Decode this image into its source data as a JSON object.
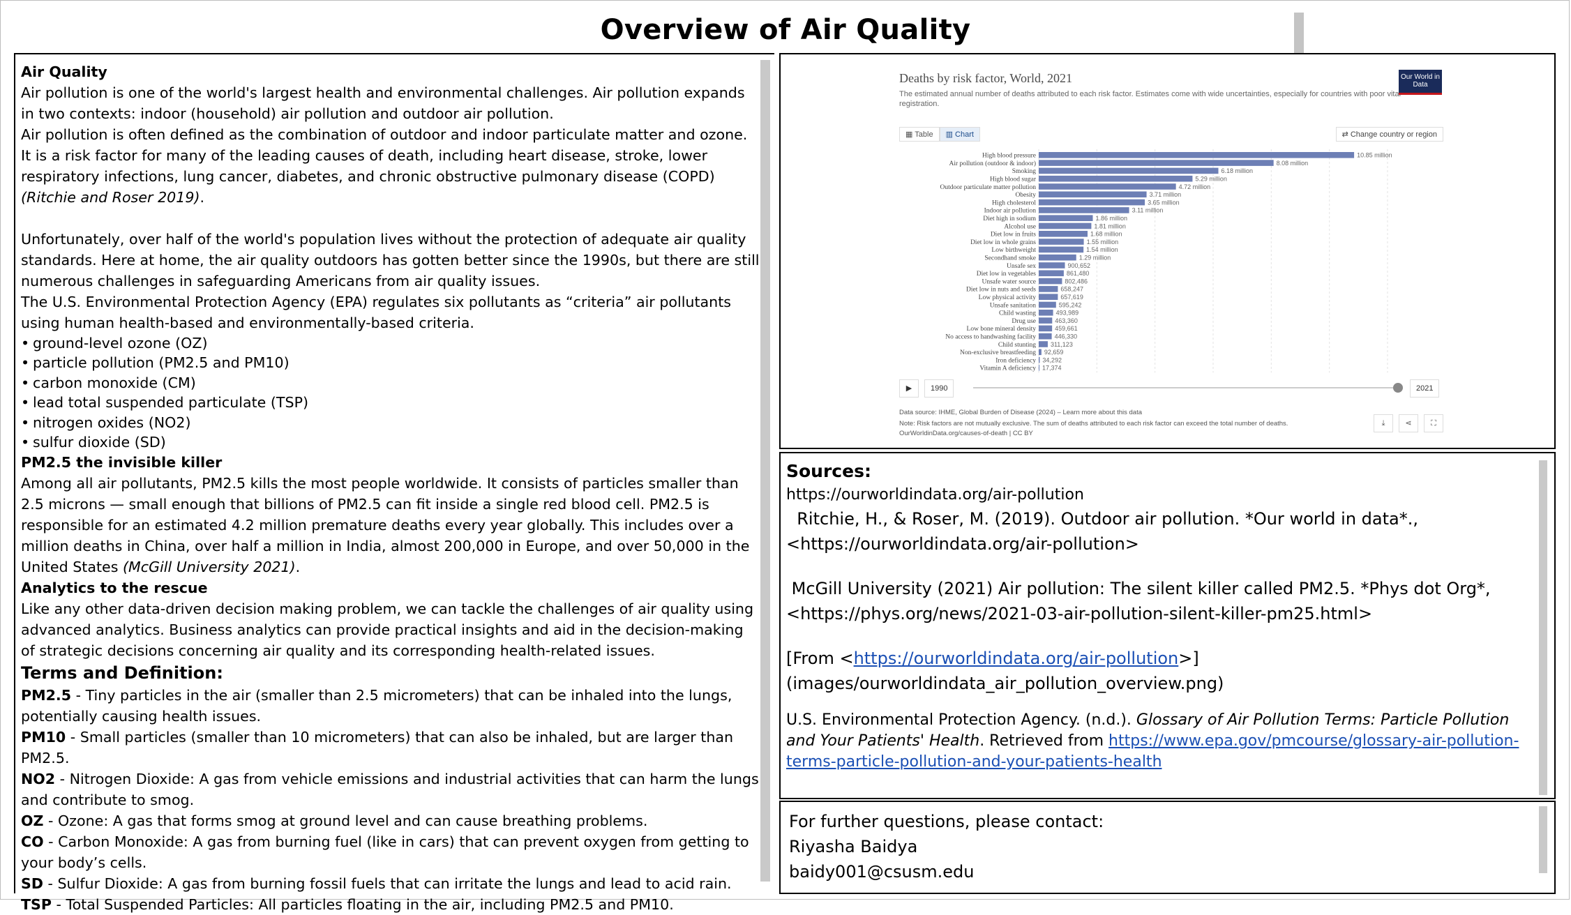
{
  "page": {
    "title": "Overview of Air Quality"
  },
  "left": {
    "heading1": "Air Quality",
    "p1": "Air pollution is one of the world's largest health and environmental challenges. Air pollution expands in two contexts: indoor (household) air pollution and outdoor air pollution.",
    "p2_text": "Air pollution is often defined as the combination of outdoor and indoor particulate matter and ozone. It is a risk factor for many of the leading causes of death, including heart disease, stroke, lower respiratory infections, lung cancer, diabetes, and chronic obstructive pulmonary disease (COPD) ",
    "p2_cite": "(Ritchie and Roser 2019)",
    "p2_end": ".",
    "p3": "Unfortunately, over half of the world's population lives without the protection of adequate air quality standards. Here at home, the air quality outdoors has gotten better since the 1990s, but there are still numerous challenges in safeguarding Americans from air quality issues.",
    "p4": "The U.S. Environmental Protection Agency (EPA) regulates six pollutants as “criteria” air pollutants using human health-based and environmentally-based criteria.",
    "bullet_char": "•",
    "pollutants": [
      "ground-level ozone (OZ)",
      "particle pollution (PM2.5 and PM10)",
      "carbon monoxide (CM)",
      "lead total suspended particulate (TSP)",
      "nitrogen oxides (NO2)",
      "sulfur dioxide (SD)"
    ],
    "heading2": "PM2.5 the invisible killer",
    "p5_text": "Among all air pollutants, PM2.5 kills the most people worldwide. It consists of particles smaller than 2.5 microns — small enough that billions of PM2.5 can fit inside a single red blood cell. PM2.5 is responsible for an estimated 4.2 million premature deaths every year globally. This includes over a million deaths in China, over half a million in India, almost 200,000 in Europe, and over 50,000 in the United States ",
    "p5_cite": "(McGill University 2021)",
    "p5_end": ".",
    "heading3": "Analytics to the rescue",
    "p6": "Like any other data-driven decision making problem, we can tackle the challenges of air quality using advanced analytics. Business analytics can provide practical insights and aid in the decision-making of strategic decisions concerning air quality and its corresponding health-related issues.",
    "terms_heading": "Terms and Definition:",
    "terms": [
      {
        "term": "PM2.5",
        "def": " - Tiny particles in the air (smaller than 2.5 micrometers) that can be inhaled into the lungs, potentially causing health issues."
      },
      {
        "term": "PM10",
        "def": " - Small particles (smaller than 10 micrometers) that can also be inhaled, but are larger than PM2.5."
      },
      {
        "term": "NO2",
        "def": " - Nitrogen Dioxide: A gas from vehicle emissions and industrial activities that can harm the lungs and contribute to smog."
      },
      {
        "term": "OZ",
        "def": " - Ozone: A gas that forms smog at ground level and can cause breathing problems."
      },
      {
        "term": "CO",
        "def": " - Carbon Monoxide: A gas from burning fuel (like in cars) that can prevent oxygen from getting to your body’s cells."
      },
      {
        "term": "SD",
        "def": " - Sulfur Dioxide: A gas from burning fossil fuels that can irritate the lungs and lead to acid rain."
      },
      {
        "term": "TSP",
        "def": " - Total Suspended Particles: All particles floating in the air, including PM2.5 and PM10."
      }
    ]
  },
  "owid": {
    "title": "Deaths by risk factor, World, 2021",
    "subtitle": "The estimated annual number of deaths attributed to each risk factor. Estimates come with wide uncertainties, especially for countries with poor vital registration.",
    "logo": "Our World in Data",
    "tab_table": "Table",
    "tab_chart": "Chart",
    "change_country": "Change country or region",
    "year_start": "1990",
    "year_end": "2021",
    "data_source": "Data source: IHME, Global Burden of Disease (2024) – Learn more about this data",
    "note": "Note: Risk factors are not mutually exclusive. The sum of deaths attributed to each risk factor can exceed the total number of deaths.",
    "url": "OurWorldinData.org/causes-of-death | CC BY",
    "bar_color": "#6d7fb5"
  },
  "chart_data": {
    "type": "bar",
    "orientation": "horizontal",
    "title": "Deaths by risk factor, World, 2021",
    "categories": [
      "High blood pressure",
      "Air pollution (outdoor & indoor)",
      "Smoking",
      "High blood sugar",
      "Outdoor particulate matter pollution",
      "Obesity",
      "High cholesterol",
      "Indoor air pollution",
      "Diet high in sodium",
      "Alcohol use",
      "Diet low in fruits",
      "Diet low in whole grains",
      "Low birthweight",
      "Secondhand smoke",
      "Unsafe sex",
      "Diet low in vegetables",
      "Unsafe water source",
      "Diet low in nuts and seeds",
      "Low physical activity",
      "Unsafe sanitation",
      "Child wasting",
      "Drug use",
      "Low bone mineral density",
      "No access to handwashing facility",
      "Child stunting",
      "Non-exclusive breastfeeding",
      "Iron deficiency",
      "Vitamin A deficiency"
    ],
    "values": [
      10850000,
      8080000,
      6180000,
      5290000,
      4720000,
      3710000,
      3650000,
      3110000,
      1860000,
      1810000,
      1680000,
      1550000,
      1540000,
      1290000,
      900652,
      861480,
      802486,
      658247,
      657619,
      595242,
      493989,
      463360,
      459661,
      446330,
      311123,
      92659,
      34292,
      17374
    ],
    "value_labels": [
      "10.85 million",
      "8.08 million",
      "6.18 million",
      "5.29 million",
      "4.72 million",
      "3.71 million",
      "3.65 million",
      "3.11 million",
      "1.86 million",
      "1.81 million",
      "1.68 million",
      "1.55 million",
      "1.54 million",
      "1.29 million",
      "900,652",
      "861,480",
      "802,486",
      "658,247",
      "657,619",
      "595,242",
      "493,989",
      "463,360",
      "459,661",
      "446,330",
      "311,123",
      "92,659",
      "34,292",
      "17,374"
    ],
    "xlim": [
      0,
      12000000
    ]
  },
  "sources": {
    "heading": "Sources:",
    "url1": "https://ourworldindata.org/air-pollution",
    "ref1_line1": "  Ritchie, H., & Roser, M. (2019). Outdoor air pollution. *Our world in data*.,",
    "ref1_line2": "<https://ourworldindata.org/air-pollution>",
    "ref2_line1": " McGill University (2021) Air pollution: The silent killer called PM2.5. *Phys dot Org*,",
    "ref2_line2": "<https://phys.org/news/2021-03-air-pollution-silent-killer-pm25.html>",
    "from_prefix": "[From <",
    "from_link": "https://ourworldindata.org/air-pollution",
    "from_suffix": ">]",
    "image_path": "(images/ourworldindata_air_pollution_overview.png)",
    "epa_prefix": "U.S. Environmental Protection Agency. (n.d.). ",
    "epa_title": "Glossary of Air Pollution Terms: Particle Pollution and Your Patients' Health",
    "epa_mid": ". Retrieved from ",
    "epa_link": "https://www.epa.gov/pmcourse/glossary-air-pollution-terms-particle-pollution-and-your-patients-health"
  },
  "contact": {
    "line1": "For further questions, please contact:",
    "name": "Riyasha Baidya",
    "email": "baidy001@csusm.edu"
  }
}
